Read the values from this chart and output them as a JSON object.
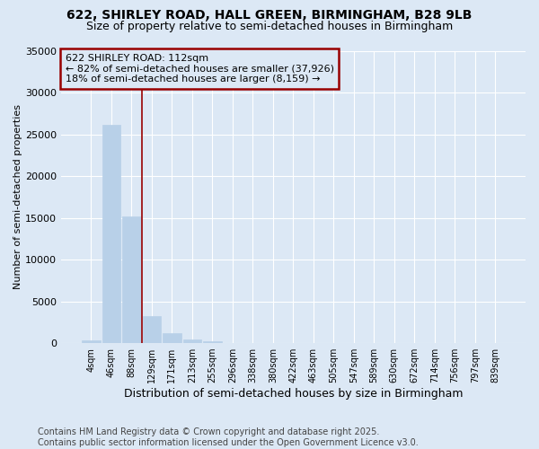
{
  "title": "622, SHIRLEY ROAD, HALL GREEN, BIRMINGHAM, B28 9LB",
  "subtitle": "Size of property relative to semi-detached houses in Birmingham",
  "xlabel": "Distribution of semi-detached houses by size in Birmingham",
  "ylabel": "Number of semi-detached properties",
  "footer_line1": "Contains HM Land Registry data © Crown copyright and database right 2025.",
  "footer_line2": "Contains public sector information licensed under the Open Government Licence v3.0.",
  "annotation_title": "622 SHIRLEY ROAD: 112sqm",
  "annotation_line1": "← 82% of semi-detached houses are smaller (37,926)",
  "annotation_line2": "18% of semi-detached houses are larger (8,159) →",
  "categories": [
    "4sqm",
    "46sqm",
    "88sqm",
    "129sqm",
    "171sqm",
    "213sqm",
    "255sqm",
    "296sqm",
    "338sqm",
    "380sqm",
    "422sqm",
    "463sqm",
    "505sqm",
    "547sqm",
    "589sqm",
    "630sqm",
    "672sqm",
    "714sqm",
    "756sqm",
    "797sqm",
    "839sqm"
  ],
  "values": [
    310,
    26100,
    15200,
    3200,
    1200,
    400,
    180,
    60,
    15,
    5,
    2,
    1,
    0,
    0,
    0,
    0,
    0,
    0,
    0,
    0,
    0
  ],
  "bar_color": "#b8d0e8",
  "bar_edgecolor": "#b8d0e8",
  "vline_color": "#990000",
  "vline_x": 2.5,
  "annotation_box_edgecolor": "#990000",
  "background_color": "#dce8f5",
  "ylim": [
    0,
    35000
  ],
  "yticks": [
    0,
    5000,
    10000,
    15000,
    20000,
    25000,
    30000,
    35000
  ],
  "title_fontsize": 10,
  "subtitle_fontsize": 9,
  "annotation_fontsize": 8,
  "axis_fontsize": 8,
  "xlabel_fontsize": 9,
  "footer_fontsize": 7
}
